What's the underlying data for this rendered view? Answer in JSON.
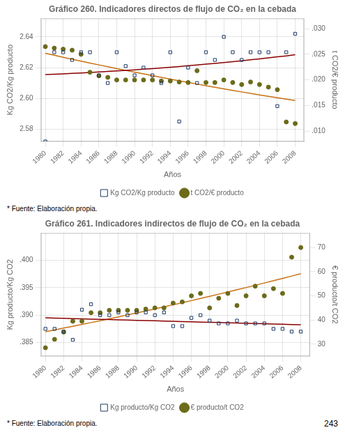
{
  "chart_data": [
    {
      "type": "scatter",
      "title": "Gráfico 260. Indicadores directos de flujo de CO₂ en la cebada",
      "xlabel": "Años",
      "ylabel": "Kg CO2/Kg producto",
      "y2label": "t CO2/€ producto",
      "x": [
        1980,
        1981,
        1982,
        1983,
        1984,
        1985,
        1986,
        1987,
        1988,
        1989,
        1990,
        1991,
        1992,
        1993,
        1994,
        1995,
        1996,
        1997,
        1998,
        1999,
        2000,
        2001,
        2002,
        2003,
        2004,
        2005,
        2006,
        2007,
        2008
      ],
      "xlim": [
        1979.5,
        2009
      ],
      "xticks": [
        1980,
        1982,
        1984,
        1986,
        1988,
        1990,
        1992,
        1994,
        1996,
        1998,
        2000,
        2002,
        2004,
        2006,
        2008
      ],
      "ylim": [
        2.572,
        2.652
      ],
      "yticks": [
        2.58,
        {
          "value": 2.6,
          "label": "2.60"
        },
        2.62,
        2.64
      ],
      "y2lim": [
        0.008,
        0.032
      ],
      "y2ticks": [
        {
          "value": 0.01,
          "label": ".010"
        },
        {
          "value": 0.015,
          "label": ".015"
        },
        {
          "value": 0.02,
          "label": ".020"
        },
        {
          "value": 0.025,
          "label": ".025"
        },
        {
          "value": 0.03,
          "label": ".030"
        }
      ],
      "grid": true,
      "legend": "bottom",
      "annotations": [
        "* Fuente: Elaboración propia."
      ],
      "series": [
        {
          "name": "Kg CO2/Kg producto",
          "type": "scatter",
          "marker": "square_open",
          "color": "#1f3864",
          "values": [
            2.572,
            2.63,
            2.63,
            2.625,
            2.63,
            2.63,
            2.615,
            2.61,
            2.63,
            2.621,
            2.615,
            2.62,
            2.615,
            2.61,
            2.63,
            2.585,
            2.62,
            2.61,
            2.63,
            2.625,
            2.64,
            2.63,
            2.625,
            2.63,
            2.63,
            2.63,
            2.595,
            2.63,
            2.642
          ]
        },
        {
          "name": "t CO2/€ producto",
          "type": "scatter",
          "marker": "circle",
          "color": "#6b6b1a",
          "axis": "y2",
          "values": [
            0.0265,
            0.0262,
            0.026,
            0.0258,
            0.025,
            0.0215,
            0.0208,
            0.0205,
            0.02,
            0.02,
            0.02,
            0.02,
            0.02,
            0.0198,
            0.0198,
            0.0196,
            0.0195,
            0.0218,
            0.0195,
            0.0195,
            0.02,
            0.0195,
            0.0191,
            0.0196,
            0.0191,
            0.0186,
            0.0181,
            0.0118,
            0.0115
          ]
        },
        {
          "type": "line",
          "color": "#8b0000",
          "values": [
            2.61552,
            2.61575,
            2.61599,
            2.61626,
            2.61654,
            2.61683,
            2.61715,
            2.61748,
            2.61782,
            2.61819,
            2.61857,
            2.61897,
            2.61938,
            2.61982,
            2.62027,
            2.62073,
            2.62122,
            2.62172,
            2.62224,
            2.62277,
            2.62332,
            2.62389,
            2.62448,
            2.62508,
            2.6257,
            2.62634,
            2.62699,
            2.62766,
            2.62835
          ]
        },
        {
          "type": "line",
          "color": "#c87010",
          "axis": "y2",
          "values": [
            0.0251908,
            0.0248041,
            0.0244216,
            0.0240434,
            0.0236694,
            0.0232997,
            0.0229343,
            0.0225731,
            0.0222163,
            0.0218636,
            0.0215153,
            0.0211712,
            0.0208313,
            0.0204958,
            0.0201645,
            0.0198375,
            0.0195147,
            0.0191962,
            0.018882,
            0.018572,
            0.0182663,
            0.0179649,
            0.0176677,
            0.0173748,
            0.0170862,
            0.0168018,
            0.0165217,
            0.0162458,
            0.0159743
          ]
        }
      ]
    },
    {
      "type": "scatter",
      "title": "Gráfico 261. Indicadores indirectos de flujo de CO₂ en la cebada",
      "xlabel": "Años",
      "ylabel": "Kg producto/Kg CO2",
      "y2label": "€ producto/t CO2",
      "x": [
        1980,
        1981,
        1982,
        1983,
        1984,
        1985,
        1986,
        1987,
        1988,
        1989,
        1990,
        1991,
        1992,
        1993,
        1994,
        1995,
        1996,
        1997,
        1998,
        1999,
        2000,
        2001,
        2002,
        2003,
        2004,
        2005,
        2006,
        2007,
        2008
      ],
      "xlim": [
        1979.5,
        2009
      ],
      "xticks": [
        1980,
        1982,
        1984,
        1986,
        1988,
        1990,
        1992,
        1994,
        1996,
        1998,
        2000,
        2002,
        2004,
        2006,
        2008
      ],
      "ylim": [
        0.3825,
        0.405
      ],
      "yticks": [
        {
          "value": 0.385,
          "label": ".385"
        },
        {
          "value": 0.39,
          "label": ".390"
        },
        {
          "value": 0.395,
          "label": ".395"
        },
        {
          "value": 0.4,
          "label": ".400"
        }
      ],
      "y2lim": [
        25,
        76
      ],
      "y2ticks": [
        30,
        40,
        50,
        60,
        70
      ],
      "grid": true,
      "legend": "bottom",
      "annotations": [
        "* Fuente: Elaboración propia.",
        "243"
      ],
      "series": [
        {
          "name": "Kg producto/Kg CO2",
          "type": "scatter",
          "marker": "square_open",
          "color": "#1f3864",
          "values": [
            0.3875,
            0.3875,
            0.387,
            0.3855,
            0.391,
            0.392,
            0.39,
            0.39,
            0.3905,
            0.39,
            0.3905,
            0.3905,
            0.39,
            0.3905,
            0.388,
            0.388,
            0.3895,
            0.39,
            0.389,
            0.3885,
            0.3885,
            0.389,
            0.3885,
            0.3885,
            0.3885,
            0.3875,
            0.3875,
            0.387,
            0.387
          ]
        },
        {
          "name": "€ producto/t CO2",
          "type": "scatter",
          "marker": "circle",
          "color": "#6b6b1a",
          "axis": "y2",
          "values": [
            28.5,
            32,
            35,
            39.5,
            39.5,
            43,
            43,
            44,
            44,
            44,
            44,
            44.5,
            45,
            45,
            47,
            47.5,
            50,
            51,
            45,
            49,
            51,
            46,
            50,
            54,
            50,
            53,
            51,
            66,
            70
          ]
        },
        {
          "type": "line",
          "color": "#8b0000",
          "values": [
            0.3895103,
            0.3894653,
            0.3894202,
            0.3893751,
            0.38933,
            0.389285,
            0.3892399,
            0.3891948,
            0.3891498,
            0.3891047,
            0.3890596,
            0.3890145,
            0.3889695,
            0.3889244,
            0.3888793,
            0.3888342,
            0.3887892,
            0.3887441,
            0.388699,
            0.3886539,
            0.3886089,
            0.3885638,
            0.3885187,
            0.3884736,
            0.3884286,
            0.3883835,
            0.3883384,
            0.3882933,
            0.3882483
          ]
        },
        {
          "type": "line",
          "color": "#c87010",
          "axis": "y2",
          "values": [
            35.16674,
            35.90268,
            36.64762,
            37.40156,
            38.16449,
            38.93642,
            39.71735,
            40.50727,
            41.30619,
            42.11409,
            42.931,
            43.7569,
            44.5918,
            45.4357,
            46.28859,
            47.15048,
            48.02136,
            48.90124,
            49.79012,
            50.68799,
            51.59485,
            52.51071,
            53.43557,
            54.36942,
            55.31227,
            56.26412,
            57.22496,
            58.1948,
            59.17364
          ]
        }
      ]
    }
  ]
}
